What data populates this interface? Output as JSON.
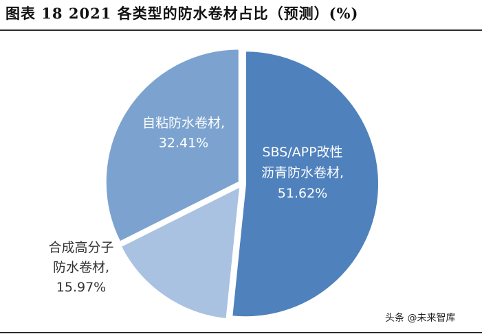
{
  "title": "图表 18 2021 各类型的防水卷材占比（预测）(%)",
  "watermark": "头条 @未来智库",
  "chart_data": {
    "type": "pie",
    "slices": [
      {
        "label_lines": [
          "SBS/APP改性",
          "沥青防水卷材,",
          "51.62%"
        ],
        "value": 51.62,
        "color": "#4f81bd",
        "text_color": "#ffffff"
      },
      {
        "label_lines": [
          "合成高分子",
          "防水卷材,",
          "15.97%"
        ],
        "value": 15.97,
        "color": "#a9c2e1",
        "text_color": "#333333"
      },
      {
        "label_lines": [
          "自粘防水卷材,",
          "32.41%"
        ],
        "value": 32.41,
        "color": "#7ca3cf",
        "text_color": "#ffffff"
      }
    ]
  }
}
